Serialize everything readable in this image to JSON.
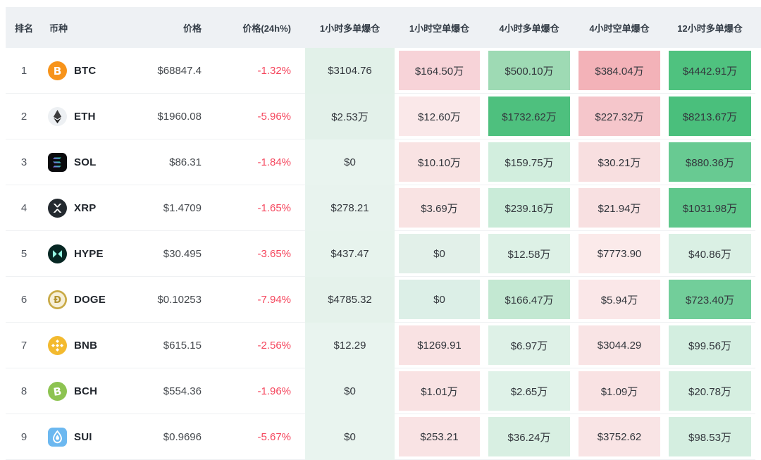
{
  "colors": {
    "header_bg": "#eef1f4",
    "negative_red": "#f5465d",
    "long_col_base_green": "#e9f4ef",
    "row_divider": "#eff1f3"
  },
  "table": {
    "columns": [
      {
        "key": "rank",
        "label": "排名"
      },
      {
        "key": "coin",
        "label": "币种"
      },
      {
        "key": "price",
        "label": "价格"
      },
      {
        "key": "change24h",
        "label": "价格(24h%)"
      },
      {
        "key": "liq1hLong",
        "label": "1小时多单爆仓"
      },
      {
        "key": "liq1hShort",
        "label": "1小时空单爆仓"
      },
      {
        "key": "liq4hLong",
        "label": "4小时多单爆仓"
      },
      {
        "key": "liq4hShort",
        "label": "4小时空单爆仓"
      },
      {
        "key": "liq12hLong",
        "label": "12小时多单爆仓"
      }
    ],
    "rows": [
      {
        "rank": "1",
        "symbol": "BTC",
        "icon": "btc-icon",
        "price": "$68847.4",
        "change": "-1.32%",
        "cells": [
          {
            "v": "$3104.76",
            "bg": "#e2f1e9"
          },
          {
            "v": "$164.50万",
            "bg": "#f7d3d8"
          },
          {
            "v": "$500.10万",
            "bg": "#9edab4"
          },
          {
            "v": "$384.04万",
            "bg": "#f3b2b8"
          },
          {
            "v": "$4442.91万",
            "bg": "#4fc27f"
          }
        ]
      },
      {
        "rank": "2",
        "symbol": "ETH",
        "icon": "eth-icon",
        "price": "$1960.08",
        "change": "-5.96%",
        "cells": [
          {
            "v": "$2.53万",
            "bg": "#e3f1ea"
          },
          {
            "v": "$12.60万",
            "bg": "#fae8e9"
          },
          {
            "v": "$1732.62万",
            "bg": "#4ec07e"
          },
          {
            "v": "$227.32万",
            "bg": "#f5c6cb"
          },
          {
            "v": "$8213.67万",
            "bg": "#4abf7c"
          }
        ]
      },
      {
        "rank": "3",
        "symbol": "SOL",
        "icon": "sol-icon",
        "price": "$86.31",
        "change": "-1.84%",
        "cells": [
          {
            "v": "$0",
            "bg": "#e9f4ef"
          },
          {
            "v": "$10.10万",
            "bg": "#f9e3e3"
          },
          {
            "v": "$159.75万",
            "bg": "#d2eede"
          },
          {
            "v": "$30.21万",
            "bg": "#f8dfe0"
          },
          {
            "v": "$880.36万",
            "bg": "#68ca92"
          }
        ]
      },
      {
        "rank": "4",
        "symbol": "XRP",
        "icon": "xrp-icon",
        "price": "$1.4709",
        "change": "-1.65%",
        "cells": [
          {
            "v": "$278.21",
            "bg": "#e8f3ee"
          },
          {
            "v": "$3.69万",
            "bg": "#f9e3e3"
          },
          {
            "v": "$239.16万",
            "bg": "#c9ebd8"
          },
          {
            "v": "$21.94万",
            "bg": "#f8e0e1"
          },
          {
            "v": "$1031.98万",
            "bg": "#5fc78b"
          }
        ]
      },
      {
        "rank": "5",
        "symbol": "HYPE",
        "icon": "hype-icon",
        "price": "$30.495",
        "change": "-3.65%",
        "cells": [
          {
            "v": "$437.47",
            "bg": "#e7f3ed"
          },
          {
            "v": "$0",
            "bg": "#e2f0e9"
          },
          {
            "v": "$12.58万",
            "bg": "#ddf1e6"
          },
          {
            "v": "$7773.90",
            "bg": "#fbeaea"
          },
          {
            "v": "$40.86万",
            "bg": "#daf0e4"
          }
        ]
      },
      {
        "rank": "6",
        "symbol": "DOGE",
        "icon": "doge-icon",
        "price": "$0.10253",
        "change": "-7.94%",
        "cells": [
          {
            "v": "$4785.32",
            "bg": "#e5f2eb"
          },
          {
            "v": "$0",
            "bg": "#dcefe7"
          },
          {
            "v": "$166.47万",
            "bg": "#c3e8d2"
          },
          {
            "v": "$5.94万",
            "bg": "#fae7e8"
          },
          {
            "v": "$723.40万",
            "bg": "#72ce9a"
          }
        ]
      },
      {
        "rank": "7",
        "symbol": "BNB",
        "icon": "bnb-icon",
        "price": "$615.15",
        "change": "-2.56%",
        "cells": [
          {
            "v": "$12.29",
            "bg": "#e9f4ef"
          },
          {
            "v": "$1269.91",
            "bg": "#f9e2e3"
          },
          {
            "v": "$6.97万",
            "bg": "#def1e7"
          },
          {
            "v": "$3044.29",
            "bg": "#f9e4e5"
          },
          {
            "v": "$99.56万",
            "bg": "#d3eee0"
          }
        ]
      },
      {
        "rank": "8",
        "symbol": "BCH",
        "icon": "bch-icon",
        "price": "$554.36",
        "change": "-1.96%",
        "cells": [
          {
            "v": "$0",
            "bg": "#e9f4ef"
          },
          {
            "v": "$1.01万",
            "bg": "#f9e2e3"
          },
          {
            "v": "$2.65万",
            "bg": "#dff2e8"
          },
          {
            "v": "$1.09万",
            "bg": "#f9e2e3"
          },
          {
            "v": "$20.78万",
            "bg": "#d6efe1"
          }
        ]
      },
      {
        "rank": "9",
        "symbol": "SUI",
        "icon": "sui-icon",
        "price": "$0.9696",
        "change": "-5.67%",
        "cells": [
          {
            "v": "$0",
            "bg": "#e9f4ef"
          },
          {
            "v": "$253.21",
            "bg": "#f9e3e4"
          },
          {
            "v": "$36.24万",
            "bg": "#d8efe2"
          },
          {
            "v": "$3752.62",
            "bg": "#f9e4e5"
          },
          {
            "v": "$98.53万",
            "bg": "#d4eee0"
          }
        ]
      }
    ]
  }
}
